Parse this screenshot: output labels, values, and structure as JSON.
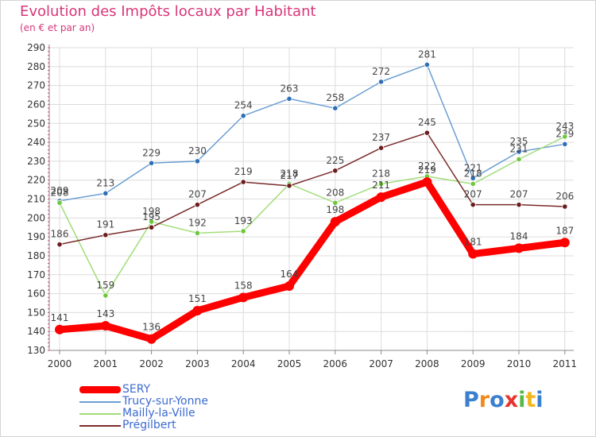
{
  "title": "Evolution des Impôts locaux par Habitant",
  "subtitle": "(en € et par an)",
  "brand": {
    "text": "Proxiti"
  },
  "colors": {
    "title": "#d8367a",
    "legend_text": "#3c6bd0",
    "grid": "#dcdcdc",
    "axis": "#888888",
    "tick_text": "#333333"
  },
  "chart_data": {
    "type": "line",
    "title": "Evolution des Impôts locaux par Habitant",
    "subtitle": "(en € et par an)",
    "xlabel": "",
    "ylabel": "",
    "categories": [
      "2000",
      "2001",
      "2002",
      "2003",
      "2004",
      "2005",
      "2006",
      "2007",
      "2008",
      "2009",
      "2010",
      "2011"
    ],
    "ylim": [
      130,
      290
    ],
    "yticks": [
      130,
      140,
      150,
      160,
      170,
      180,
      190,
      200,
      210,
      220,
      230,
      240,
      250,
      260,
      270,
      280,
      290
    ],
    "grid": true,
    "legend_position": "bottom-left",
    "series": [
      {
        "name": "Trucy-sur-Yonne",
        "color": "#6b9fd3",
        "marker": "#2f6fb5",
        "bold": false,
        "values": [
          209,
          213,
          229,
          230,
          254,
          263,
          258,
          272,
          281,
          221,
          235,
          239
        ]
      },
      {
        "name": "Mailly-la-Ville",
        "color": "#a3dd7a",
        "marker": "#6cc83c",
        "bold": false,
        "values": [
          208,
          159,
          198,
          192,
          193,
          218,
          208,
          218,
          222,
          218,
          231,
          243
        ]
      },
      {
        "name": "Prégilbert",
        "color": "#7a2b2b",
        "marker": "#6b1c1c",
        "bold": false,
        "values": [
          186,
          191,
          195,
          207,
          219,
          217,
          225,
          237,
          245,
          207,
          207,
          206
        ]
      },
      {
        "name": "SERY",
        "color": "#ff0000",
        "marker": "#ff0000",
        "bold": true,
        "values": [
          141,
          143,
          136,
          151,
          158,
          164,
          198,
          211,
          219,
          181,
          184,
          187
        ]
      }
    ],
    "legend_order": [
      "SERY",
      "Trucy-sur-Yonne",
      "Mailly-la-Ville",
      "Prégilbert"
    ]
  }
}
